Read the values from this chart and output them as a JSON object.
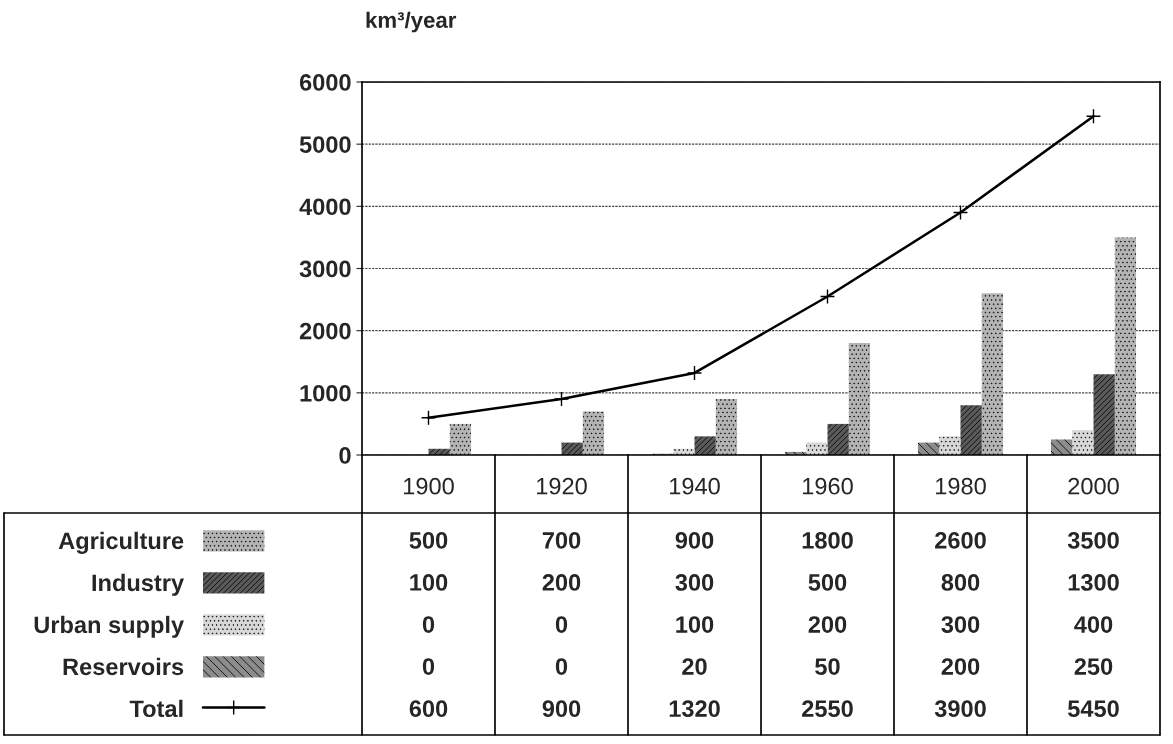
{
  "chart_data": {
    "type": "bar",
    "ylabel": "km³/year",
    "categories": [
      "1900",
      "1920",
      "1940",
      "1960",
      "1980",
      "2000"
    ],
    "series": [
      {
        "name": "Agriculture",
        "color": "#b4b4b4",
        "values": [
          500,
          700,
          900,
          1800,
          2600,
          3500
        ]
      },
      {
        "name": "Industry",
        "color": "#5a5a5a",
        "values": [
          100,
          200,
          300,
          500,
          800,
          1300
        ]
      },
      {
        "name": "Urban supply",
        "color": "#d8d8d8",
        "values": [
          0,
          0,
          100,
          200,
          300,
          400
        ]
      },
      {
        "name": "Reservoirs",
        "color": "#8c8c8c",
        "values": [
          0,
          0,
          20,
          50,
          200,
          250
        ]
      },
      {
        "name": "Total",
        "type": "line",
        "color": "#000000",
        "marker": "cross",
        "line_style": "solid",
        "values": [
          600,
          900,
          1320,
          2550,
          3900,
          5450
        ]
      }
    ],
    "ylim": [
      0,
      6000
    ],
    "yticks": [
      0,
      1000,
      2000,
      3000,
      4000,
      5000,
      6000
    ],
    "grid": "y",
    "legend": "bottom",
    "data_labels": true
  }
}
